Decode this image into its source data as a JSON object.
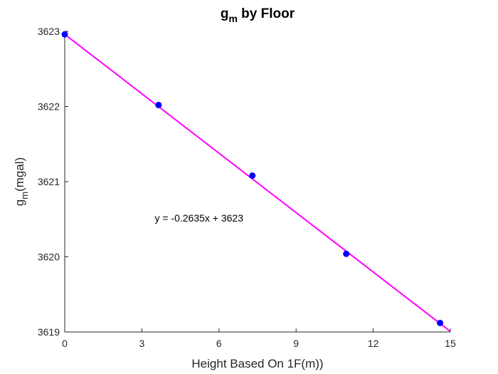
{
  "chart_data": {
    "type": "scatter",
    "title": {
      "main": "g",
      "sub": "m",
      "rest": " by Floor"
    },
    "xlabel": "Height Based On 1F(m))",
    "ylabel": {
      "main": "g",
      "sub": "m",
      "rest": "(mgal)"
    },
    "xlim": [
      0,
      15
    ],
    "ylim": [
      3619,
      3623
    ],
    "xticks": [
      0,
      3,
      6,
      9,
      12,
      15
    ],
    "yticks": [
      3619,
      3620,
      3621,
      3622,
      3623
    ],
    "grid": false,
    "series": [
      {
        "x": [
          0,
          3.65,
          7.3,
          10.95,
          14.6
        ],
        "y": [
          3622.96,
          3622.02,
          3621.08,
          3620.04,
          3619.12
        ],
        "color": "#0000ff",
        "marker": "circle"
      }
    ],
    "fit_line": {
      "slope": -0.2635,
      "intercept": 3622.96,
      "x_range": [
        0,
        15
      ],
      "color": "#ff00ff"
    },
    "annotation": {
      "text": "y = -0.2635x + 3623",
      "x": 3.5,
      "y": 3620.47
    }
  }
}
